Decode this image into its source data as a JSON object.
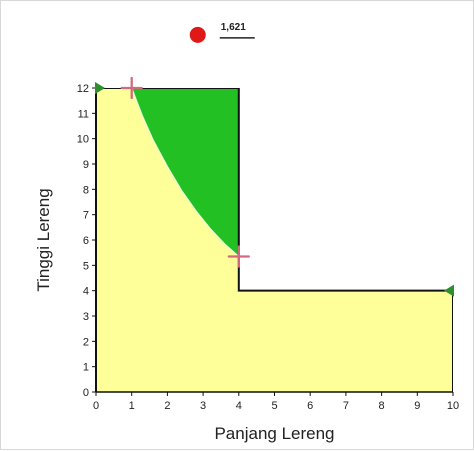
{
  "chart_data": {
    "type": "area",
    "xlabel": "Panjang Lereng",
    "ylabel": "Tinggi Lereng",
    "xlim": [
      0,
      10
    ],
    "ylim": [
      0,
      12
    ],
    "x_ticks": [
      "0",
      "1",
      "2",
      "3",
      "4",
      "5",
      "6",
      "7",
      "8",
      "9",
      "10"
    ],
    "y_ticks": [
      "0",
      "1",
      "2",
      "3",
      "4",
      "5",
      "6",
      "7",
      "8",
      "9",
      "10",
      "11",
      "12"
    ],
    "score": {
      "label": "1,621",
      "x": 2.85,
      "y": 13.9
    },
    "slope_outline": [
      [
        0,
        0
      ],
      [
        0,
        12
      ],
      [
        4,
        12
      ],
      [
        4,
        4
      ],
      [
        10,
        4
      ],
      [
        10,
        0
      ]
    ],
    "slip_surface": [
      [
        1.0,
        12.0
      ],
      [
        1.3,
        10.9
      ],
      [
        1.6,
        9.95
      ],
      [
        2.0,
        8.9
      ],
      [
        2.4,
        7.95
      ],
      [
        2.8,
        7.15
      ],
      [
        3.2,
        6.45
      ],
      [
        3.6,
        5.85
      ],
      [
        4.0,
        5.35
      ]
    ],
    "markers": {
      "entry_point": [
        1,
        12
      ],
      "exit_point": [
        4,
        5.35
      ],
      "left_limit": [
        0,
        12
      ],
      "right_limit": [
        10,
        4
      ]
    },
    "colors": {
      "soil_fill": "#ffff99",
      "failure_fill": "#22c022",
      "outline": "#111111",
      "marker": "#d06a80",
      "limit_marker": "#2f8f2f",
      "score_dot": "#e01818",
      "grid_frame": "#111111"
    }
  }
}
